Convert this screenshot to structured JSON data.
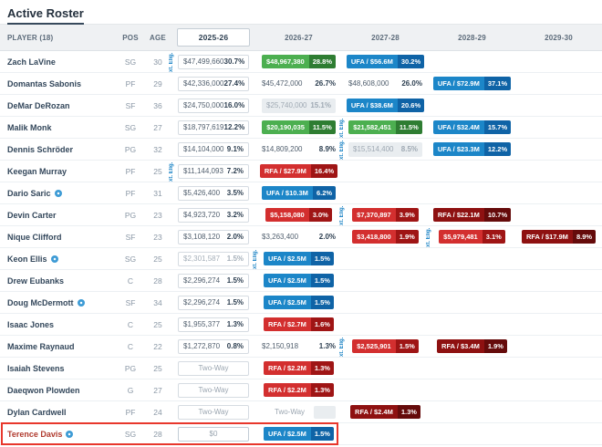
{
  "title": "Active Roster",
  "ext_label": "xt. Elig.",
  "colors": {
    "badge_green": "#4caf50",
    "badge_green_dark": "#2e7d32",
    "badge_blue": "#1c86c8",
    "badge_blue_dark": "#0f63a6",
    "badge_red": "#d32f2f",
    "badge_red_dark": "#9f1515",
    "badge_maroon": "#8e1111",
    "badge_maroon_dark": "#650b0b",
    "ext_blue": "#1982c4",
    "highlight_red": "#e8372c"
  },
  "columns": [
    {
      "key": "player",
      "label": "PLAYER (18)"
    },
    {
      "key": "pos",
      "label": "POS"
    },
    {
      "key": "age",
      "label": "AGE"
    },
    {
      "key": "y1",
      "label": "2025-26",
      "active": true
    },
    {
      "key": "y2",
      "label": "2026-27"
    },
    {
      "key": "y3",
      "label": "2027-28"
    },
    {
      "key": "y4",
      "label": "2028-29"
    },
    {
      "key": "y5",
      "label": "2029-30"
    }
  ],
  "players": [
    {
      "name": "Zach LaVine",
      "pos": "SG",
      "age": "30",
      "icon": false,
      "highlight": false,
      "ext_col": "y1",
      "cells": [
        {
          "col": "y1",
          "type": "box",
          "value": "$47,499,660",
          "pct": "30.7%"
        },
        {
          "col": "y2",
          "type": "badge",
          "style": "green",
          "value": "$48,967,380",
          "pct": "28.8%"
        },
        {
          "col": "y3",
          "type": "badge",
          "style": "blue",
          "value": "UFA / $56.6M",
          "pct": "30.2%"
        }
      ]
    },
    {
      "name": "Domantas Sabonis",
      "pos": "PF",
      "age": "29",
      "icon": false,
      "highlight": false,
      "ext_col": null,
      "cells": [
        {
          "col": "y1",
          "type": "box",
          "value": "$42,336,000",
          "pct": "27.4%"
        },
        {
          "col": "y2",
          "type": "plain",
          "value": "$45,472,000",
          "pct": "26.7%"
        },
        {
          "col": "y3",
          "type": "plain",
          "value": "$48,608,000",
          "pct": "26.0%"
        },
        {
          "col": "y4",
          "type": "badge",
          "style": "blue",
          "value": "UFA / $72.9M",
          "pct": "37.1%"
        }
      ]
    },
    {
      "name": "DeMar DeRozan",
      "pos": "SF",
      "age": "36",
      "icon": false,
      "highlight": false,
      "ext_col": null,
      "cells": [
        {
          "col": "y1",
          "type": "box",
          "value": "$24,750,000",
          "pct": "16.0%"
        },
        {
          "col": "y2",
          "type": "gray",
          "value": "$25,740,000",
          "pct": "15.1%"
        },
        {
          "col": "y3",
          "type": "badge",
          "style": "blue",
          "value": "UFA / $38.6M",
          "pct": "20.6%"
        }
      ]
    },
    {
      "name": "Malik Monk",
      "pos": "SG",
      "age": "27",
      "icon": false,
      "highlight": false,
      "ext_col": "y3",
      "cells": [
        {
          "col": "y1",
          "type": "box",
          "value": "$18,797,619",
          "pct": "12.2%"
        },
        {
          "col": "y2",
          "type": "badge",
          "style": "green",
          "value": "$20,190,035",
          "pct": "11.5%"
        },
        {
          "col": "y3",
          "type": "badge",
          "style": "green",
          "value": "$21,582,451",
          "pct": "11.5%"
        },
        {
          "col": "y4",
          "type": "badge",
          "style": "blue",
          "value": "UFA / $32.4M",
          "pct": "15.7%"
        }
      ]
    },
    {
      "name": "Dennis Schröder",
      "pos": "PG",
      "age": "32",
      "icon": false,
      "highlight": false,
      "ext_col": "y3",
      "cells": [
        {
          "col": "y1",
          "type": "box",
          "value": "$14,104,000",
          "pct": "9.1%"
        },
        {
          "col": "y2",
          "type": "plain",
          "value": "$14,809,200",
          "pct": "8.9%"
        },
        {
          "col": "y3",
          "type": "gray",
          "value": "$15,514,400",
          "pct": "8.5%"
        },
        {
          "col": "y4",
          "type": "badge",
          "style": "blue",
          "value": "UFA / $23.3M",
          "pct": "12.2%"
        }
      ]
    },
    {
      "name": "Keegan Murray",
      "pos": "PF",
      "age": "25",
      "icon": false,
      "highlight": false,
      "ext_col": "y1",
      "cells": [
        {
          "col": "y1",
          "type": "box",
          "value": "$11,144,093",
          "pct": "7.2%"
        },
        {
          "col": "y2",
          "type": "badge",
          "style": "red",
          "value": "RFA / $27.9M",
          "pct": "16.4%"
        }
      ]
    },
    {
      "name": "Dario Saric",
      "pos": "PF",
      "age": "31",
      "icon": true,
      "highlight": false,
      "ext_col": null,
      "cells": [
        {
          "col": "y1",
          "type": "box",
          "value": "$5,426,400",
          "pct": "3.5%"
        },
        {
          "col": "y2",
          "type": "badge",
          "style": "blue",
          "value": "UFA / $10.3M",
          "pct": "6.2%"
        }
      ]
    },
    {
      "name": "Devin Carter",
      "pos": "PG",
      "age": "23",
      "icon": false,
      "highlight": false,
      "ext_col": "y3",
      "cells": [
        {
          "col": "y1",
          "type": "box",
          "value": "$4,923,720",
          "pct": "3.2%"
        },
        {
          "col": "y2",
          "type": "badge",
          "style": "red",
          "value": "$5,158,080",
          "pct": "3.0%"
        },
        {
          "col": "y3",
          "type": "badge",
          "style": "red",
          "value": "$7,370,897",
          "pct": "3.9%"
        },
        {
          "col": "y4",
          "type": "badge",
          "style": "maroon",
          "value": "RFA / $22.1M",
          "pct": "10.7%"
        }
      ]
    },
    {
      "name": "Nique Clifford",
      "pos": "SF",
      "age": "23",
      "icon": false,
      "highlight": false,
      "ext_col": "y4",
      "cells": [
        {
          "col": "y1",
          "type": "box",
          "value": "$3,108,120",
          "pct": "2.0%"
        },
        {
          "col": "y2",
          "type": "plain",
          "value": "$3,263,400",
          "pct": "2.0%"
        },
        {
          "col": "y3",
          "type": "badge",
          "style": "red",
          "value": "$3,418,800",
          "pct": "1.9%"
        },
        {
          "col": "y4",
          "type": "badge",
          "style": "red",
          "value": "$5,979,481",
          "pct": "3.1%"
        },
        {
          "col": "y5",
          "type": "badge",
          "style": "maroon",
          "value": "RFA / $17.9M",
          "pct": "8.9%"
        }
      ]
    },
    {
      "name": "Keon Ellis",
      "pos": "SG",
      "age": "25",
      "icon": true,
      "highlight": false,
      "ext_col": "y2",
      "cells": [
        {
          "col": "y1",
          "type": "box",
          "variant": "muted",
          "value": "$2,301,587",
          "pct": "1.5%"
        },
        {
          "col": "y2",
          "type": "badge",
          "style": "blue",
          "value": "UFA / $2.5M",
          "pct": "1.5%"
        }
      ]
    },
    {
      "name": "Drew Eubanks",
      "pos": "C",
      "age": "28",
      "icon": false,
      "highlight": false,
      "ext_col": null,
      "cells": [
        {
          "col": "y1",
          "type": "box",
          "value": "$2,296,274",
          "pct": "1.5%"
        },
        {
          "col": "y2",
          "type": "badge",
          "style": "blue",
          "value": "UFA / $2.5M",
          "pct": "1.5%"
        }
      ]
    },
    {
      "name": "Doug McDermott",
      "pos": "SF",
      "age": "34",
      "icon": true,
      "highlight": false,
      "ext_col": null,
      "cells": [
        {
          "col": "y1",
          "type": "box",
          "value": "$2,296,274",
          "pct": "1.5%"
        },
        {
          "col": "y2",
          "type": "badge",
          "style": "blue",
          "value": "UFA / $2.5M",
          "pct": "1.5%"
        }
      ]
    },
    {
      "name": "Isaac Jones",
      "pos": "C",
      "age": "25",
      "icon": false,
      "highlight": false,
      "ext_col": null,
      "cells": [
        {
          "col": "y1",
          "type": "box",
          "value": "$1,955,377",
          "pct": "1.3%"
        },
        {
          "col": "y2",
          "type": "badge",
          "style": "red",
          "value": "RFA / $2.7M",
          "pct": "1.6%"
        }
      ]
    },
    {
      "name": "Maxime Raynaud",
      "pos": "C",
      "age": "22",
      "icon": false,
      "highlight": false,
      "ext_col": "y3",
      "cells": [
        {
          "col": "y1",
          "type": "box",
          "value": "$1,272,870",
          "pct": "0.8%"
        },
        {
          "col": "y2",
          "type": "plain",
          "value": "$2,150,918",
          "pct": "1.3%"
        },
        {
          "col": "y3",
          "type": "badge",
          "style": "red",
          "value": "$2,525,901",
          "pct": "1.5%"
        },
        {
          "col": "y4",
          "type": "badge",
          "style": "maroon",
          "value": "RFA / $3.4M",
          "pct": "1.9%"
        }
      ]
    },
    {
      "name": "Isaiah Stevens",
      "pos": "PG",
      "age": "25",
      "icon": false,
      "highlight": false,
      "ext_col": null,
      "cells": [
        {
          "col": "y1",
          "type": "box",
          "variant": "center",
          "value": "Two-Way"
        },
        {
          "col": "y2",
          "type": "badge",
          "style": "red",
          "value": "RFA / $2.2M",
          "pct": "1.3%"
        }
      ]
    },
    {
      "name": "Daeqwon Plowden",
      "pos": "G",
      "age": "27",
      "icon": false,
      "highlight": false,
      "ext_col": null,
      "cells": [
        {
          "col": "y1",
          "type": "box",
          "variant": "center",
          "value": "Two-Way"
        },
        {
          "col": "y2",
          "type": "badge",
          "style": "red",
          "value": "RFA / $2.2M",
          "pct": "1.3%"
        }
      ]
    },
    {
      "name": "Dylan Cardwell",
      "pos": "PF",
      "age": "24",
      "icon": false,
      "highlight": false,
      "ext_col": null,
      "cells": [
        {
          "col": "y1",
          "type": "box",
          "variant": "center",
          "value": "Two-Way"
        },
        {
          "col": "y2",
          "type": "text_graybox",
          "value": "Two-Way"
        },
        {
          "col": "y3",
          "type": "badge",
          "style": "maroon",
          "value": "RFA / $2.4M",
          "pct": "1.3%"
        }
      ]
    },
    {
      "name": "Terence Davis",
      "pos": "SG",
      "age": "28",
      "icon": true,
      "highlight": true,
      "ext_col": null,
      "cells": [
        {
          "col": "y1",
          "type": "box",
          "variant": "input",
          "value": "$0"
        },
        {
          "col": "y2",
          "type": "badge",
          "style": "blue",
          "value": "UFA / $2.5M",
          "pct": "1.5%"
        }
      ]
    }
  ]
}
